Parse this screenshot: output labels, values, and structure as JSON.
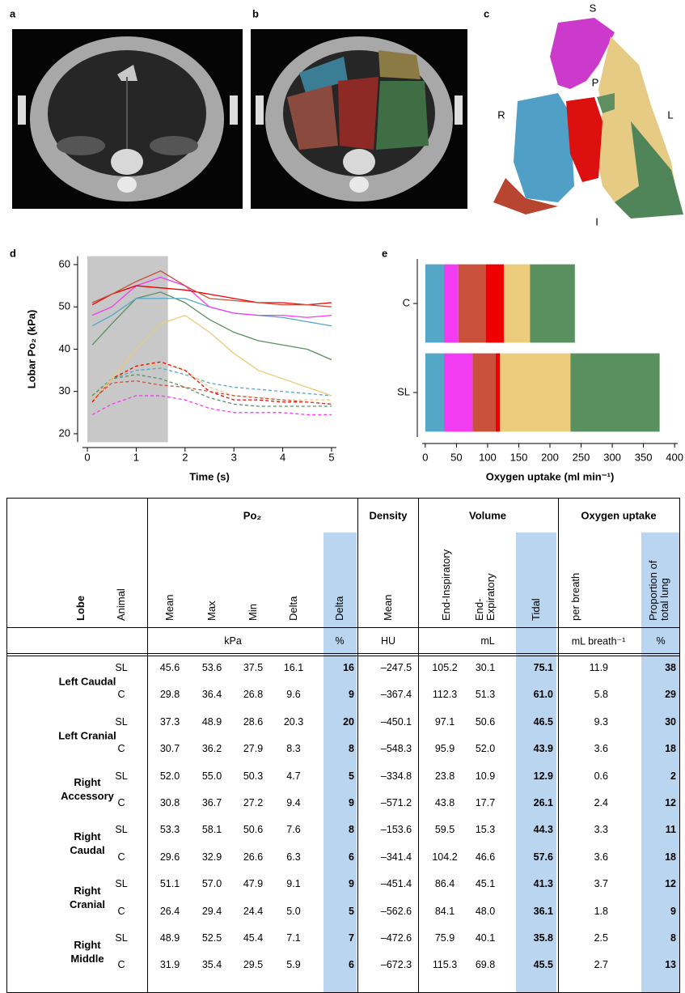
{
  "panel_labels": [
    "a",
    "b",
    "c",
    "d",
    "e"
  ],
  "orientation_labels": [
    "S",
    "P",
    "R",
    "L",
    "I"
  ],
  "chart_data": [
    {
      "type": "line",
      "ylabel": "Lobar Po₂ (kPa)",
      "xlabel": "Time (s)",
      "x": [
        0.1,
        0.5,
        1,
        1.5,
        2,
        2.5,
        3,
        3.5,
        4,
        4.5,
        5
      ],
      "xlim": [
        -0.1,
        5.1
      ],
      "ylim": [
        18,
        62
      ],
      "xticks": [
        0,
        1,
        2,
        3,
        4,
        5
      ],
      "yticks": [
        20,
        30,
        40,
        50,
        60
      ],
      "shaded_x": [
        0,
        1.65
      ],
      "shade_color": "#c8c8c8",
      "series": [
        {
          "color": "#55a7c8",
          "dashed": true,
          "values": [
            29,
            33,
            35,
            35.5,
            34,
            32,
            31,
            30.5,
            30,
            29.5,
            29
          ]
        },
        {
          "color": "#ebcb7c",
          "dashed": true,
          "values": [
            28,
            33,
            36,
            36.5,
            35,
            31,
            29,
            28.5,
            28,
            28,
            28
          ]
        },
        {
          "color": "#ee0000",
          "dashed": true,
          "values": [
            27.5,
            33,
            36,
            37,
            35,
            30,
            28,
            28,
            27.5,
            27.5,
            27
          ]
        },
        {
          "color": "#c9503b",
          "dashed": true,
          "values": [
            28,
            32,
            32.5,
            31.5,
            31,
            30,
            29,
            28.5,
            28,
            27.5,
            27
          ]
        },
        {
          "color": "#5a9060",
          "dashed": true,
          "values": [
            29,
            33,
            34,
            33,
            31,
            28.5,
            27,
            26.5,
            26.5,
            26.5,
            26.5
          ]
        },
        {
          "color": "#f23cf2",
          "dashed": true,
          "values": [
            24.5,
            27,
            29,
            29,
            28,
            26,
            25,
            25,
            25,
            24.5,
            24.5
          ]
        },
        {
          "color": "#ebcb7c",
          "dashed": false,
          "values": [
            28,
            33,
            40,
            46,
            48,
            44,
            39,
            35,
            33,
            31,
            29
          ]
        },
        {
          "color": "#5a9060",
          "dashed": false,
          "values": [
            41,
            46,
            52,
            53.5,
            51,
            47,
            44,
            42,
            41,
            40,
            37.5
          ]
        },
        {
          "color": "#55a7c8",
          "dashed": false,
          "values": [
            45.5,
            48,
            52,
            52,
            52,
            50,
            48.5,
            48,
            47.5,
            46.5,
            45.5
          ]
        },
        {
          "color": "#f23cf2",
          "dashed": false,
          "values": [
            48,
            50,
            55,
            57,
            55,
            50,
            48.5,
            48,
            48,
            47.5,
            48
          ]
        },
        {
          "color": "#ee0000",
          "dashed": false,
          "values": [
            50.5,
            53,
            55,
            54.5,
            54,
            53,
            52,
            51,
            51,
            50.5,
            51
          ]
        },
        {
          "color": "#c9503b",
          "dashed": false,
          "values": [
            51,
            53,
            56,
            58.5,
            55,
            52,
            51.5,
            51,
            50.5,
            50.5,
            50
          ]
        }
      ]
    },
    {
      "type": "stacked_barh",
      "xlabel": "Oxygen uptake (ml min⁻¹)",
      "categories": [
        "C",
        "SL"
      ],
      "xlim": [
        -5,
        405
      ],
      "xticks": [
        0,
        50,
        100,
        150,
        200,
        250,
        300,
        350,
        400
      ],
      "series": [
        {
          "color": "#55a7c8",
          "values": [
            30,
            30
          ]
        },
        {
          "color": "#f23cf2",
          "values": [
            23,
            46
          ]
        },
        {
          "color": "#c9503b",
          "values": [
            44,
            37
          ]
        },
        {
          "color": "#ee0000",
          "values": [
            29,
            7
          ]
        },
        {
          "color": "#ebcb7c",
          "values": [
            42,
            113
          ]
        },
        {
          "color": "#5a9060",
          "values": [
            72,
            143
          ]
        }
      ]
    }
  ],
  "table": {
    "group_headers": [
      "Po₂",
      "Density",
      "Volume",
      "Oxygen uptake"
    ],
    "column_headers": [
      "Lobe",
      "Animal",
      "Mean",
      "Max",
      "Min",
      "Delta",
      "Delta",
      "Mean",
      "End-Inspiratory",
      "End-Expiratory",
      "Tidal",
      "per breath",
      "Proportion of total lung"
    ],
    "units": [
      "kPa",
      "%",
      "HU",
      "mL",
      "mL breath⁻¹",
      "%"
    ],
    "lobes": [
      "Left Caudal",
      "Left Cranial",
      "Right Accessory",
      "Right Caudal",
      "Right Cranial",
      "Right Middle"
    ],
    "rows": [
      [
        "SL",
        "45.6",
        "53.6",
        "37.5",
        "16.1",
        "16",
        "–247.5",
        "105.2",
        "30.1",
        "75.1",
        "11.9",
        "38"
      ],
      [
        "C",
        "29.8",
        "36.4",
        "26.8",
        "9.6",
        "9",
        "–367.4",
        "112.3",
        "51.3",
        "61.0",
        "5.8",
        "29"
      ],
      [
        "SL",
        "37.3",
        "48.9",
        "28.6",
        "20.3",
        "20",
        "–450.1",
        "97.1",
        "50.6",
        "46.5",
        "9.3",
        "30"
      ],
      [
        "C",
        "30.7",
        "36.2",
        "27.9",
        "8.3",
        "8",
        "–548.3",
        "95.9",
        "52.0",
        "43.9",
        "3.6",
        "18"
      ],
      [
        "SL",
        "52.0",
        "55.0",
        "50.3",
        "4.7",
        "5",
        "–334.8",
        "23.8",
        "10.9",
        "12.9",
        "0.6",
        "2"
      ],
      [
        "C",
        "30.8",
        "36.7",
        "27.2",
        "9.4",
        "9",
        "–571.2",
        "43.8",
        "17.7",
        "26.1",
        "2.4",
        "12"
      ],
      [
        "SL",
        "53.3",
        "58.1",
        "50.6",
        "7.6",
        "8",
        "–153.6",
        "59.5",
        "15.3",
        "44.3",
        "3.3",
        "11"
      ],
      [
        "C",
        "29.6",
        "32.9",
        "26.6",
        "6.3",
        "6",
        "–341.4",
        "104.2",
        "46.6",
        "57.6",
        "3.6",
        "18"
      ],
      [
        "SL",
        "51.1",
        "57.0",
        "47.9",
        "9.1",
        "9",
        "–451.4",
        "86.4",
        "45.1",
        "41.3",
        "3.7",
        "12"
      ],
      [
        "C",
        "26.4",
        "29.4",
        "24.4",
        "5.0",
        "5",
        "–562.6",
        "84.1",
        "48.0",
        "36.1",
        "1.8",
        "9"
      ],
      [
        "SL",
        "48.9",
        "52.5",
        "45.4",
        "7.1",
        "7",
        "–472.6",
        "75.9",
        "40.1",
        "35.8",
        "2.5",
        "8"
      ],
      [
        "C",
        "31.9",
        "35.4",
        "29.5",
        "5.9",
        "6",
        "–672.3",
        "115.3",
        "69.8",
        "45.5",
        "2.7",
        "13"
      ]
    ]
  }
}
